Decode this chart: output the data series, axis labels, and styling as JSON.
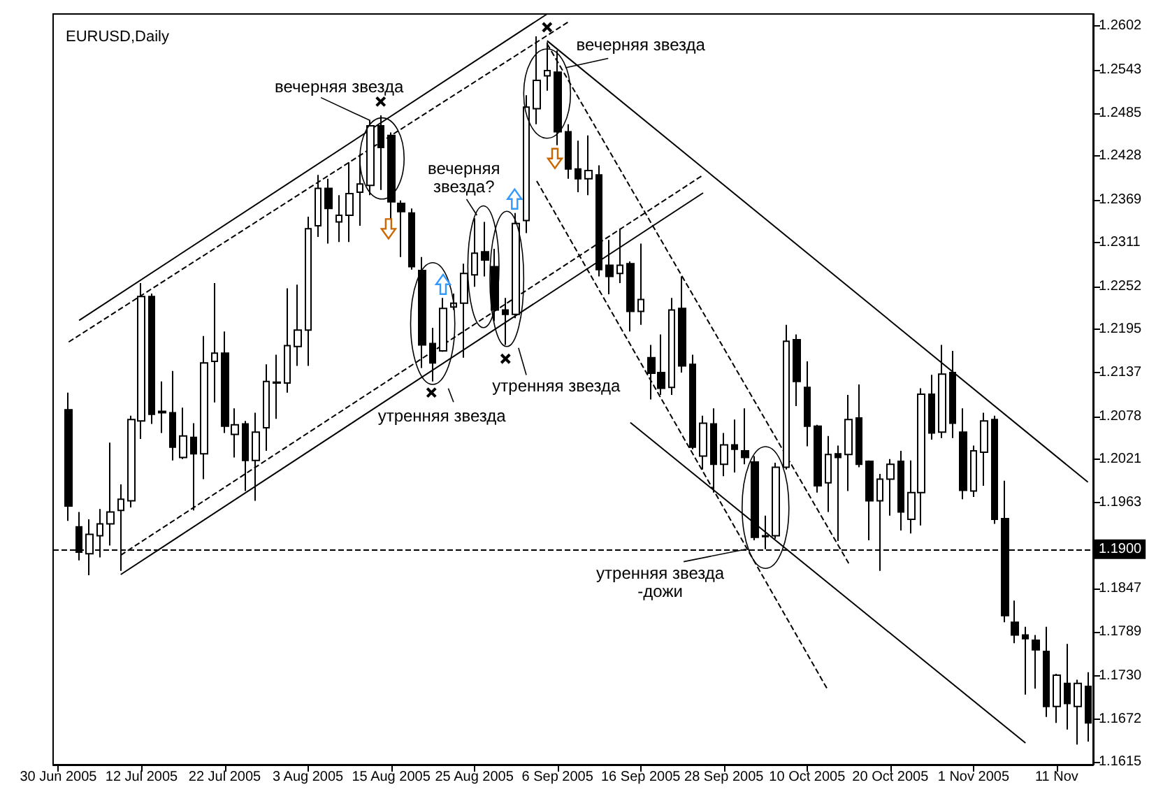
{
  "chart_data": {
    "type": "candlestick",
    "title": "EURUSD,Daily",
    "categories": [
      "30 Jun 2005",
      null,
      null,
      null,
      null,
      null,
      null,
      null,
      "12 Jul 2005",
      null,
      null,
      null,
      null,
      null,
      null,
      null,
      "22 Jul 2005",
      null,
      null,
      null,
      null,
      null,
      null,
      null,
      "3 Aug 2005",
      null,
      null,
      null,
      null,
      null,
      null,
      null,
      "15 Aug 2005",
      null,
      null,
      null,
      null,
      null,
      null,
      null,
      "25 Aug 2005",
      null,
      null,
      null,
      null,
      null,
      null,
      null,
      "6 Sep 2005",
      null,
      null,
      null,
      null,
      null,
      null,
      null,
      "16 Sep 2005",
      null,
      null,
      null,
      null,
      null,
      null,
      null,
      "28 Sep 2005",
      null,
      null,
      null,
      null,
      null,
      null,
      null,
      "10 Oct 2005",
      null,
      null,
      null,
      null,
      null,
      null,
      null,
      "20 Oct 2005",
      null,
      null,
      null,
      null,
      null,
      null,
      null,
      "1 Nov 2005",
      null,
      null,
      null,
      null,
      null,
      null,
      null,
      "11 Nov",
      null,
      null,
      null
    ],
    "ohlc": [
      null,
      [
        1.2087,
        1.211,
        1.1938,
        1.1958
      ],
      [
        1.193,
        1.195,
        1.1885,
        1.1896
      ],
      [
        1.1894,
        1.194,
        1.1865,
        1.192
      ],
      [
        1.1918,
        1.1954,
        1.1889,
        1.1934
      ],
      [
        1.1934,
        1.2043,
        1.1905,
        1.195
      ],
      [
        1.1952,
        1.1987,
        1.1871,
        1.1967
      ],
      [
        1.1965,
        1.2079,
        1.1956,
        1.2074
      ],
      [
        1.2072,
        1.2257,
        1.2048,
        1.2239
      ],
      [
        1.2239,
        1.2243,
        1.2068,
        1.2081
      ],
      [
        1.2085,
        1.2125,
        1.2056,
        1.2083
      ],
      [
        1.2083,
        1.2139,
        1.2019,
        1.2037
      ],
      [
        1.2023,
        1.209,
        1.2021,
        1.2052
      ],
      [
        1.205,
        1.2069,
        1.1952,
        1.2028
      ],
      [
        1.2028,
        1.2186,
        1.1994,
        1.215
      ],
      [
        1.2152,
        1.2257,
        1.2097,
        1.2163
      ],
      [
        1.2163,
        1.2192,
        1.2056,
        1.2065
      ],
      [
        1.2054,
        1.2089,
        1.2023,
        1.2067
      ],
      [
        1.2068,
        1.2072,
        1.1978,
        1.2019
      ],
      [
        1.2019,
        1.2083,
        1.1965,
        1.2057
      ],
      [
        1.2063,
        1.2148,
        1.2032,
        1.2125
      ],
      [
        1.2124,
        1.2161,
        1.2075,
        1.2123
      ],
      [
        1.2123,
        1.225,
        1.211,
        1.2173
      ],
      [
        1.2172,
        1.2255,
        1.2146,
        1.2194
      ],
      [
        1.2194,
        1.2346,
        1.2146,
        1.233
      ],
      [
        1.2334,
        1.2402,
        1.2319,
        1.2384
      ],
      [
        1.2384,
        1.2397,
        1.231,
        1.2357
      ],
      [
        1.2339,
        1.2375,
        1.2312,
        1.2348
      ],
      [
        1.2348,
        1.2419,
        1.2312,
        1.2377
      ],
      [
        1.2379,
        1.243,
        1.2334,
        1.239
      ],
      [
        1.2388,
        1.2475,
        1.2375,
        1.2468
      ],
      [
        1.2468,
        1.2482,
        1.2382,
        1.2439
      ],
      [
        1.2455,
        1.2459,
        1.2343,
        1.2366
      ],
      [
        1.2364,
        1.2368,
        1.2292,
        1.2353
      ],
      [
        1.2351,
        1.2357,
        1.2275,
        1.2279
      ],
      [
        1.2274,
        1.2292,
        1.2143,
        1.2174
      ],
      [
        1.2176,
        1.2197,
        1.2125,
        1.215
      ],
      [
        1.2166,
        1.2237,
        1.2165,
        1.2223
      ],
      [
        1.2225,
        1.2243,
        1.2221,
        1.223
      ],
      [
        1.223,
        1.2283,
        1.2157,
        1.227
      ],
      [
        1.2268,
        1.2344,
        1.2252,
        1.2297
      ],
      [
        1.2299,
        1.2339,
        1.2266,
        1.2288
      ],
      [
        1.2279,
        1.2303,
        1.2206,
        1.2221
      ],
      [
        1.2221,
        1.2237,
        1.2174,
        1.2215
      ],
      [
        1.2215,
        1.2351,
        1.221,
        1.2337
      ],
      [
        1.2341,
        1.2509,
        1.2324,
        1.2493
      ],
      [
        1.2491,
        1.2588,
        1.247,
        1.2529
      ],
      [
        1.2535,
        1.258,
        1.2515,
        1.2542
      ],
      [
        1.254,
        1.2569,
        1.2442,
        1.246
      ],
      [
        1.246,
        1.247,
        1.2397,
        1.241
      ],
      [
        1.241,
        1.2448,
        1.2379,
        1.2397
      ],
      [
        1.2397,
        1.2455,
        1.2375,
        1.2408
      ],
      [
        1.2402,
        1.2415,
        1.2266,
        1.2275
      ],
      [
        1.2281,
        1.2315,
        1.2242,
        1.2266
      ],
      [
        1.227,
        1.233,
        1.2257,
        1.2281
      ],
      [
        1.2283,
        1.2286,
        1.2192,
        1.2219
      ],
      [
        1.2219,
        1.231,
        1.2201,
        1.2235
      ],
      [
        1.2157,
        1.2174,
        1.2101,
        1.2136
      ],
      [
        1.2137,
        1.2188,
        1.2107,
        1.2116
      ],
      [
        1.2117,
        1.2237,
        1.2107,
        1.2221
      ],
      [
        1.2223,
        1.2266,
        1.2137,
        1.2146
      ],
      [
        1.2148,
        1.2161,
        1.2034,
        1.2037
      ],
      [
        1.2025,
        1.2079,
        1.2007,
        1.2069
      ],
      [
        1.2068,
        1.2089,
        1.1976,
        1.2014
      ],
      [
        1.2014,
        1.2056,
        1.1998,
        1.204
      ],
      [
        1.204,
        1.2074,
        1.2003,
        1.2034
      ],
      [
        1.2032,
        1.2089,
        1.2014,
        1.2023
      ],
      [
        1.2017,
        1.2025,
        1.1912,
        1.1916
      ],
      [
        1.1918,
        1.1945,
        1.19,
        1.1917
      ],
      [
        1.1918,
        1.2016,
        1.1914,
        1.201
      ],
      [
        1.201,
        1.2201,
        1.2007,
        1.2179
      ],
      [
        1.2181,
        1.2188,
        1.2092,
        1.2125
      ],
      [
        1.2117,
        1.2152,
        1.2038,
        1.2065
      ],
      [
        1.2065,
        1.2067,
        1.1976,
        1.1985
      ],
      [
        1.1989,
        1.2052,
        1.195,
        1.2027
      ],
      [
        1.2028,
        1.2039,
        1.1911,
        1.2023
      ],
      [
        1.2027,
        1.2107,
        1.1978,
        1.2074
      ],
      [
        1.2076,
        1.2121,
        1.201,
        1.2014
      ],
      [
        1.2018,
        1.2019,
        1.1912,
        1.1965
      ],
      [
        1.1965,
        1.2001,
        1.1871,
        1.1994
      ],
      [
        1.1994,
        1.2021,
        1.1945,
        1.2014
      ],
      [
        1.2018,
        1.2032,
        1.1925,
        1.195
      ],
      [
        1.194,
        1.2019,
        1.1921,
        1.1976
      ],
      [
        1.1976,
        1.2116,
        1.1932,
        1.2108
      ],
      [
        1.2108,
        1.2134,
        1.2047,
        1.2056
      ],
      [
        1.2057,
        1.2174,
        1.2049,
        1.2135
      ],
      [
        1.2137,
        1.2166,
        1.2049,
        1.2069
      ],
      [
        1.2057,
        1.2089,
        1.1967,
        1.1979
      ],
      [
        1.1978,
        1.2039,
        1.197,
        1.2032
      ],
      [
        1.203,
        1.2083,
        1.1985,
        1.2072
      ],
      [
        1.2074,
        1.2079,
        1.1934,
        1.194
      ],
      [
        1.1941,
        1.1992,
        1.1802,
        1.1811
      ],
      [
        1.1802,
        1.1831,
        1.1774,
        1.1785
      ],
      [
        1.1785,
        1.1796,
        1.1705,
        1.178
      ],
      [
        1.1778,
        1.1785,
        1.1713,
        1.1765
      ],
      [
        1.1763,
        1.1796,
        1.1675,
        1.1689
      ],
      [
        1.1689,
        1.1733,
        1.1667,
        1.1731
      ],
      [
        1.172,
        1.1773,
        1.1658,
        1.1693
      ],
      [
        1.1689,
        1.1725,
        1.1638,
        1.172
      ],
      [
        1.1716,
        1.1735,
        1.1642,
        1.1667
      ]
    ],
    "ylim": [
      1.1611,
      1.2618
    ],
    "yticks": [
      1.1615,
      1.1672,
      {
        "value": 1.173,
        "label": "1.1730"
      },
      1.1789,
      1.1847,
      1.1963,
      1.2021,
      1.2078,
      1.2137,
      1.2195,
      1.2252,
      1.2311,
      1.2369,
      1.2428,
      1.2485,
      1.2543,
      1.2602
    ],
    "ref_lines": [
      {
        "axis": "y",
        "value": 1.19,
        "label": "1.1900",
        "line_style": "dashed",
        "color": "#000000"
      }
    ],
    "series": [
      {
        "type": "line",
        "values": [
          null,
          null,
          1.2207,
          null,
          null,
          null,
          null,
          null,
          null,
          null,
          null,
          null,
          null,
          null,
          null,
          null,
          null,
          null,
          null,
          null,
          null,
          null,
          null,
          null,
          null,
          null,
          null,
          null,
          null,
          null,
          null,
          null,
          null,
          null,
          null,
          null,
          null,
          null,
          null,
          null,
          null,
          null,
          null,
          null,
          null,
          null,
          null,
          1.2618,
          null,
          null,
          null,
          null,
          null,
          null,
          null,
          null,
          null,
          null,
          null,
          null,
          null,
          null,
          null,
          null,
          null,
          null,
          null,
          null,
          null,
          null,
          null,
          null,
          null,
          null,
          null,
          null,
          null,
          null,
          null,
          null,
          null,
          null,
          null,
          null,
          null,
          null,
          null,
          null,
          null,
          null,
          null,
          null,
          null,
          null,
          null,
          null,
          null,
          null,
          null,
          null
        ],
        "color": "#000000",
        "line_style": "solid"
      },
      {
        "type": "line",
        "values": [
          null,
          1.2178,
          null,
          null,
          null,
          null,
          null,
          null,
          null,
          null,
          null,
          null,
          null,
          null,
          null,
          null,
          null,
          null,
          null,
          null,
          null,
          null,
          null,
          null,
          null,
          null,
          null,
          null,
          null,
          null,
          null,
          null,
          null,
          null,
          null,
          null,
          null,
          null,
          null,
          null,
          null,
          null,
          null,
          null,
          null,
          null,
          null,
          null,
          null,
          1.2607,
          null,
          null,
          null,
          null,
          null,
          null,
          null,
          null,
          null,
          null,
          null,
          null,
          null,
          null,
          null,
          null,
          null,
          null,
          null,
          null,
          null,
          null,
          null,
          null,
          null,
          null,
          null,
          null,
          null,
          null,
          null,
          null,
          null,
          null,
          null,
          null,
          null,
          null,
          null,
          null,
          null,
          null,
          null,
          null,
          null,
          null,
          null,
          null,
          null,
          null
        ],
        "color": "#000000",
        "line_style": "dashed"
      },
      {
        "type": "line",
        "values": [
          null,
          null,
          null,
          null,
          null,
          null,
          1.1866,
          null,
          null,
          null,
          null,
          null,
          null,
          null,
          null,
          null,
          null,
          null,
          null,
          null,
          null,
          null,
          null,
          null,
          null,
          null,
          null,
          null,
          null,
          null,
          null,
          null,
          null,
          null,
          null,
          null,
          null,
          null,
          null,
          null,
          null,
          null,
          null,
          null,
          null,
          null,
          null,
          null,
          null,
          null,
          null,
          null,
          null,
          null,
          null,
          null,
          null,
          null,
          null,
          null,
          null,
          null,
          1.2378,
          null,
          null,
          null,
          null,
          null,
          null,
          null,
          null,
          null,
          null,
          null,
          null,
          null,
          null,
          null,
          null,
          null,
          null,
          null,
          null,
          null,
          null,
          null,
          null,
          null,
          null,
          null,
          null,
          null,
          null,
          null,
          null,
          null,
          null,
          null,
          null,
          null
        ],
        "color": "#000000",
        "line_style": "solid"
      },
      {
        "type": "line",
        "values": [
          null,
          null,
          null,
          null,
          null,
          null,
          1.1892,
          null,
          null,
          null,
          null,
          null,
          null,
          null,
          null,
          null,
          null,
          null,
          null,
          null,
          null,
          null,
          null,
          null,
          null,
          null,
          null,
          null,
          null,
          null,
          null,
          null,
          null,
          null,
          null,
          null,
          null,
          null,
          null,
          null,
          null,
          null,
          null,
          null,
          null,
          null,
          null,
          null,
          null,
          null,
          null,
          null,
          null,
          null,
          null,
          null,
          null,
          null,
          null,
          null,
          null,
          null,
          1.2402,
          null,
          null,
          null,
          null,
          null,
          null,
          null,
          null,
          null,
          null,
          null,
          null,
          null,
          null,
          null,
          null,
          null,
          null,
          null,
          null,
          null,
          null,
          null,
          null,
          null,
          null,
          null,
          null,
          null,
          null,
          null,
          null,
          null,
          null,
          null,
          null,
          null
        ],
        "color": "#000000",
        "line_style": "dashed"
      },
      {
        "type": "line",
        "values": [
          null,
          null,
          null,
          null,
          null,
          null,
          null,
          null,
          null,
          null,
          null,
          null,
          null,
          null,
          null,
          null,
          null,
          null,
          null,
          null,
          null,
          null,
          null,
          null,
          null,
          null,
          null,
          null,
          null,
          null,
          null,
          null,
          null,
          null,
          null,
          null,
          null,
          null,
          null,
          null,
          null,
          null,
          null,
          null,
          null,
          null,
          null,
          1.2582,
          null,
          null,
          null,
          null,
          null,
          null,
          null,
          null,
          null,
          null,
          null,
          null,
          null,
          null,
          null,
          null,
          null,
          null,
          null,
          null,
          null,
          null,
          null,
          null,
          null,
          null,
          null,
          null,
          null,
          null,
          null,
          null,
          null,
          null,
          null,
          null,
          null,
          null,
          null,
          null,
          null,
          null,
          null,
          null,
          null,
          null,
          null,
          null,
          null,
          null,
          null,
          1.199
        ],
        "color": "#000000",
        "line_style": "solid"
      },
      {
        "type": "line",
        "values": [
          null,
          null,
          null,
          null,
          null,
          null,
          null,
          null,
          null,
          null,
          null,
          null,
          null,
          null,
          null,
          null,
          null,
          null,
          null,
          null,
          null,
          null,
          null,
          null,
          null,
          null,
          null,
          null,
          null,
          null,
          null,
          null,
          null,
          null,
          null,
          null,
          null,
          null,
          null,
          null,
          null,
          null,
          null,
          null,
          null,
          null,
          null,
          1.2578,
          null,
          null,
          null,
          null,
          null,
          null,
          null,
          null,
          null,
          null,
          null,
          null,
          null,
          null,
          null,
          null,
          null,
          null,
          null,
          null,
          null,
          null,
          null,
          null,
          null,
          null,
          null,
          null,
          1.1881,
          null,
          null,
          null,
          null,
          null,
          null,
          null,
          null,
          null,
          null,
          null,
          null,
          null,
          null,
          null,
          null,
          null,
          null,
          null,
          null,
          null,
          null,
          null
        ],
        "color": "#000000",
        "line_style": "dashed"
      },
      {
        "type": "line",
        "values": [
          null,
          null,
          null,
          null,
          null,
          null,
          null,
          null,
          null,
          null,
          null,
          null,
          null,
          null,
          null,
          null,
          null,
          null,
          null,
          null,
          null,
          null,
          null,
          null,
          null,
          null,
          null,
          null,
          null,
          null,
          null,
          null,
          null,
          null,
          null,
          null,
          null,
          null,
          null,
          null,
          null,
          null,
          null,
          null,
          null,
          null,
          1.2394,
          null,
          null,
          null,
          null,
          null,
          null,
          null,
          null,
          null,
          null,
          null,
          null,
          null,
          null,
          null,
          null,
          null,
          null,
          null,
          null,
          null,
          null,
          null,
          null,
          null,
          null,
          null,
          1.1711,
          null,
          null,
          null,
          null,
          null,
          null,
          null,
          null,
          null,
          null,
          null,
          null,
          null,
          null,
          null,
          null,
          null,
          null,
          null,
          null,
          null,
          null,
          null,
          null,
          null
        ],
        "color": "#000000",
        "line_style": "dashed"
      },
      {
        "type": "line",
        "values": [
          null,
          null,
          null,
          null,
          null,
          null,
          null,
          null,
          null,
          null,
          null,
          null,
          null,
          null,
          null,
          null,
          null,
          null,
          null,
          null,
          null,
          null,
          null,
          null,
          null,
          null,
          null,
          null,
          null,
          null,
          null,
          null,
          null,
          null,
          null,
          null,
          null,
          null,
          null,
          null,
          null,
          null,
          null,
          null,
          null,
          null,
          null,
          null,
          null,
          null,
          null,
          null,
          null,
          null,
          null,
          1.207,
          null,
          null,
          null,
          null,
          null,
          null,
          null,
          null,
          null,
          null,
          null,
          null,
          null,
          null,
          null,
          null,
          null,
          null,
          null,
          null,
          null,
          null,
          null,
          null,
          null,
          null,
          null,
          null,
          null,
          null,
          null,
          null,
          null,
          null,
          null,
          null,
          null,
          1.164,
          null,
          null,
          null,
          null,
          null,
          null
        ],
        "color": "#000000",
        "line_style": "solid"
      }
    ],
    "annotations": [
      "вечерняя звезда",
      "вечерняя звезда",
      "вечерняя\nзвезда?",
      "утренняя звезда",
      "утренняя звезда",
      {
        "text": "утренняя звезда\n-дожи",
        "y": 1.19
      }
    ]
  }
}
